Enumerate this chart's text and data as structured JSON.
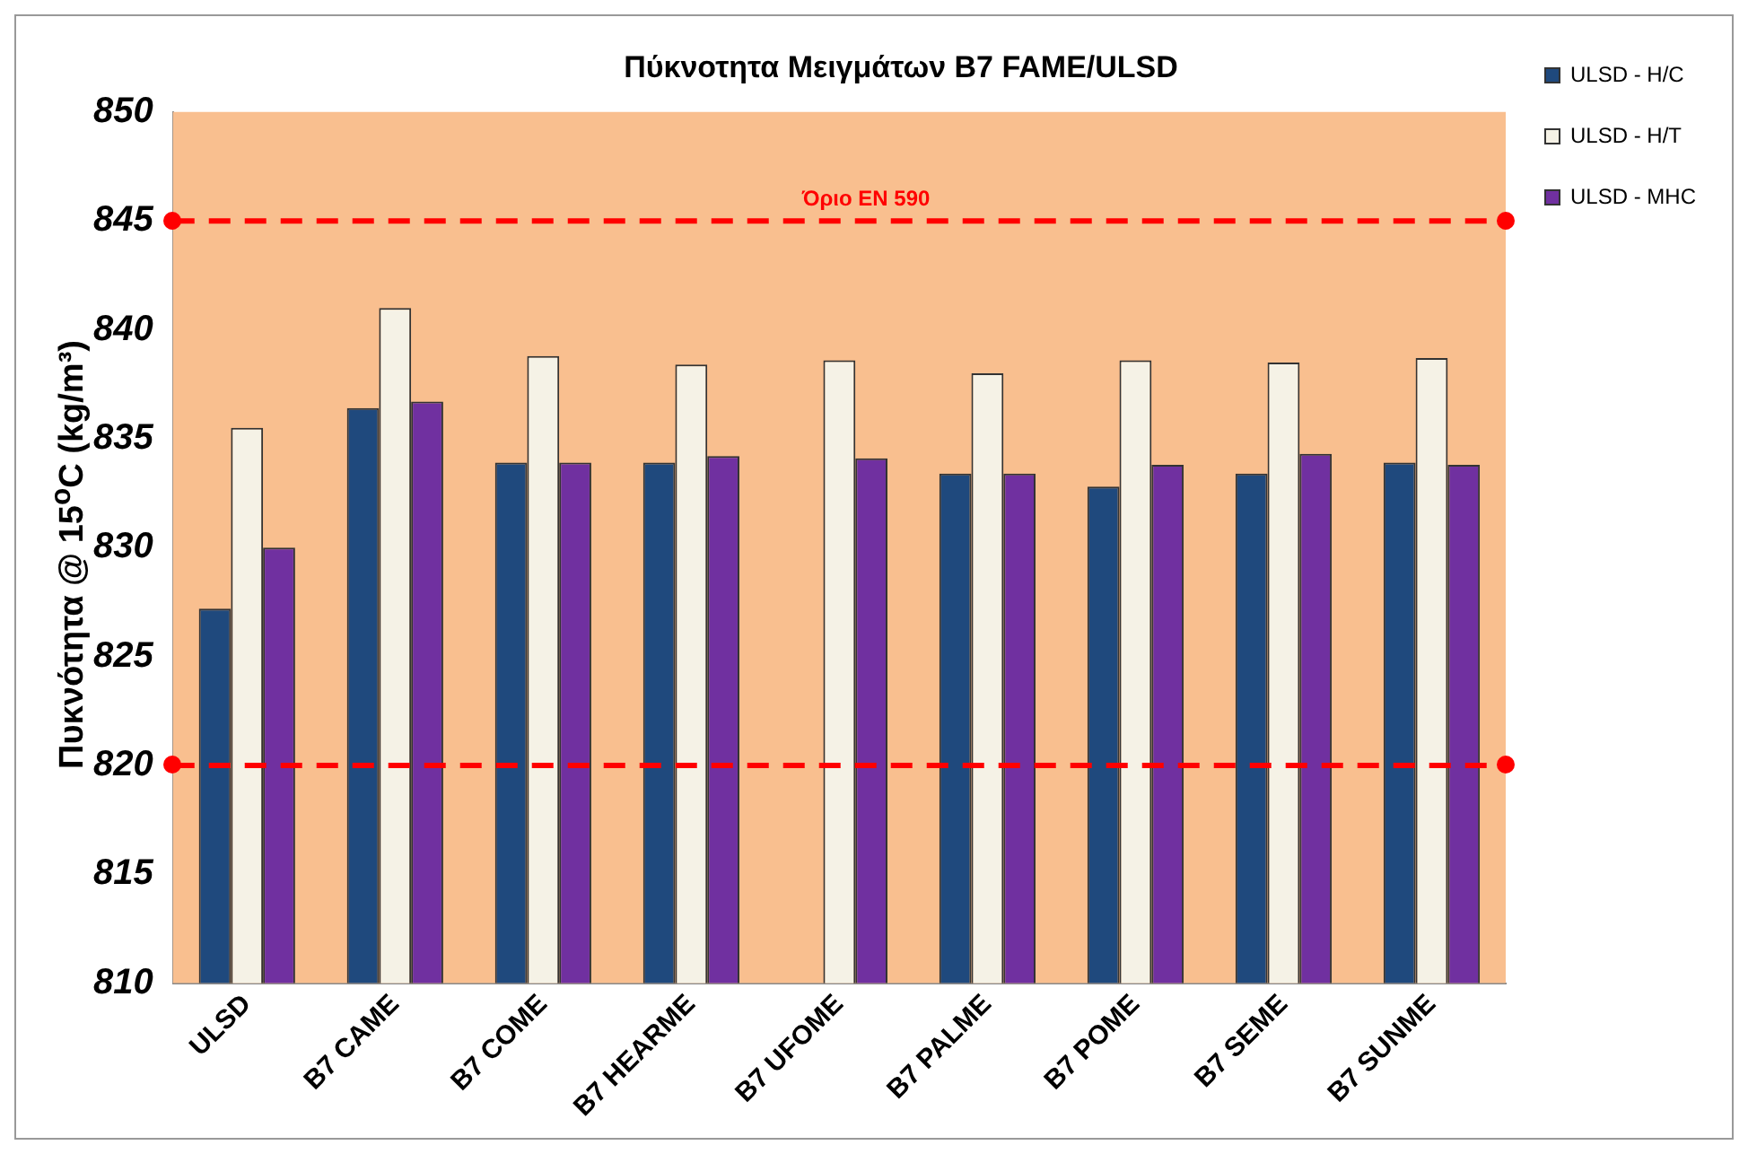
{
  "chart_data": {
    "type": "bar",
    "title": "Πύκνοτητα Μειγμάτων B7 FAME/ULSD",
    "ylabel": "Πυκνότητα  @ 15$^{o}$C (kg/m³)",
    "categories": [
      "ULSD",
      "B7 CAME",
      "B7 COME",
      "B7 HEARME",
      "B7 UFOME",
      "B7 PALME",
      "B7 POME",
      "B7 SEME",
      "B7 SUNME"
    ],
    "series": [
      {
        "name": "ULSD - H/C",
        "color": "#1f497d",
        "values": [
          827.2,
          836.4,
          833.9,
          833.9,
          null,
          833.4,
          832.8,
          833.4,
          833.9
        ]
      },
      {
        "name": "ULSD - H/T",
        "color": "#f5f2e6",
        "values": [
          835.5,
          841.0,
          838.8,
          838.4,
          838.6,
          838.0,
          838.6,
          838.5,
          838.7
        ]
      },
      {
        "name": "ULSD - MHC",
        "color": "#7030a0",
        "values": [
          830.0,
          836.7,
          833.9,
          834.2,
          834.1,
          833.4,
          833.8,
          834.3,
          833.8
        ]
      }
    ],
    "ylim": [
      810,
      850
    ],
    "yticks": [
      810,
      815,
      820,
      825,
      830,
      835,
      840,
      845,
      850
    ],
    "grid": false,
    "legend": "top right",
    "ref_lines": [
      {
        "axis": "y",
        "value": 845,
        "label": "Όριο EN 590",
        "color": "#ff0000",
        "line_style": "dashed"
      },
      {
        "axis": "y",
        "value": 820,
        "color": "#ff0000",
        "line_style": "dashed"
      }
    ]
  }
}
